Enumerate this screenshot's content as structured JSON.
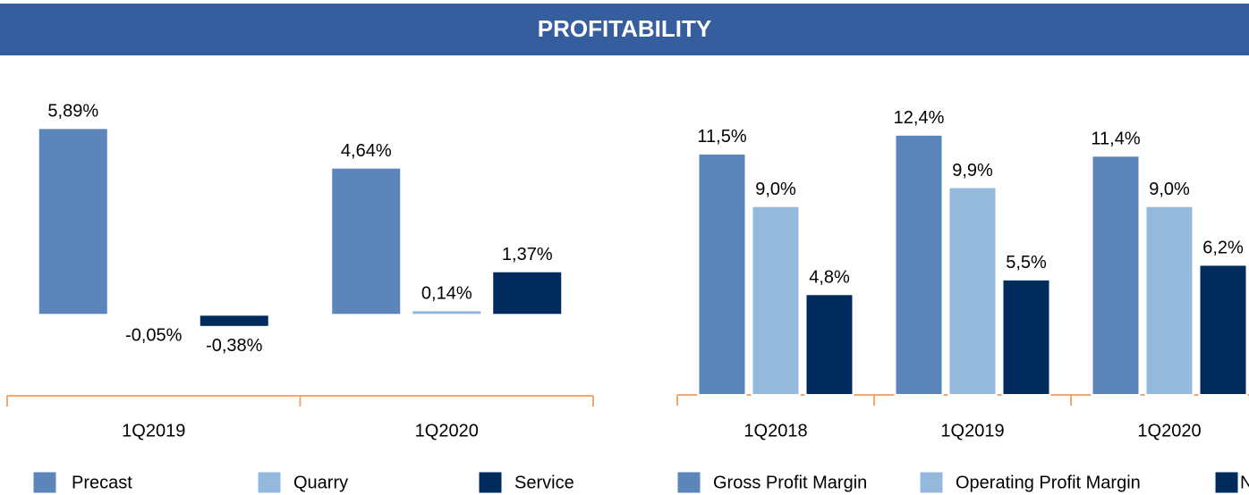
{
  "header": {
    "title": "PROFITABILITY"
  },
  "chart_data": [
    {
      "type": "bar",
      "categories": [
        "1Q2019",
        "1Q2020"
      ],
      "ylim": [
        -2.5,
        7
      ],
      "series": [
        {
          "name": "Precast",
          "color": "#5b85bb",
          "values": [
            5.89,
            4.64
          ],
          "value_labels": [
            "5,89%",
            "4,64%"
          ]
        },
        {
          "name": "Quarry",
          "color": "#95b8dd",
          "values": [
            -0.05,
            0.14
          ],
          "value_labels": [
            "-0,05%",
            "0,14%"
          ]
        },
        {
          "name": "Service",
          "color": "#002b5c",
          "values": [
            -0.38,
            1.37
          ],
          "value_labels": [
            "-0,38%",
            "1,37%"
          ]
        }
      ]
    },
    {
      "type": "bar",
      "categories": [
        "1Q2018",
        "1Q2019",
        "1Q2020"
      ],
      "ylim": [
        0,
        13.5
      ],
      "series": [
        {
          "name": "Gross Profit Margin",
          "color": "#5b85bb",
          "values": [
            11.5,
            12.4,
            11.4
          ],
          "value_labels": [
            "11,5%",
            "12,4%",
            "11,4%"
          ]
        },
        {
          "name": "Operating Profit Margin",
          "color": "#95b8dd",
          "values": [
            9.0,
            9.9,
            9.0
          ],
          "value_labels": [
            "9,0%",
            "9,9%",
            "9,0%"
          ]
        },
        {
          "name": "N",
          "color": "#002b5c",
          "values": [
            4.8,
            5.5,
            6.2
          ],
          "value_labels": [
            "4,8%",
            "5,5%",
            "6,2%"
          ]
        }
      ]
    }
  ]
}
